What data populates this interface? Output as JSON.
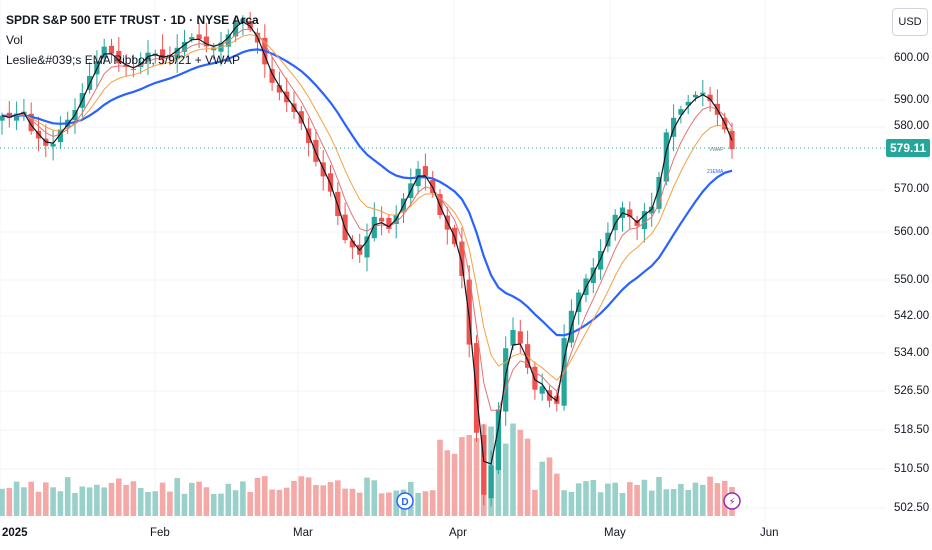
{
  "legend": {
    "title": "SPDR S&P 500 ETF TRUST · 1D · NYSE Arca",
    "volume": "Vol",
    "indicator": "Leslie&#039;s EMA Ribbon, 5/9/21 + VWAP"
  },
  "currency": "USD",
  "last_price_label": "579.11",
  "chart_data": {
    "type": "candlestick",
    "y_ticks": [
      "600.00",
      "590.00",
      "580.00",
      "570.00",
      "560.00",
      "550.00",
      "542.00",
      "534.00",
      "526.50",
      "518.50",
      "510.50",
      "502.50"
    ],
    "x_ticks": [
      "2025",
      "Feb",
      "Mar",
      "Apr",
      "May",
      "Jun"
    ],
    "last_price": 579.11,
    "series_labels": [
      "VWAP",
      "21EMA"
    ],
    "event_markers": [
      "D",
      "⚡"
    ],
    "colors": {
      "up": "#26a69a",
      "down": "#ef5350",
      "ema21": "#2962ff",
      "ema9": "#f5a142",
      "ema5": "#e57373",
      "vwap": "#131722"
    }
  }
}
